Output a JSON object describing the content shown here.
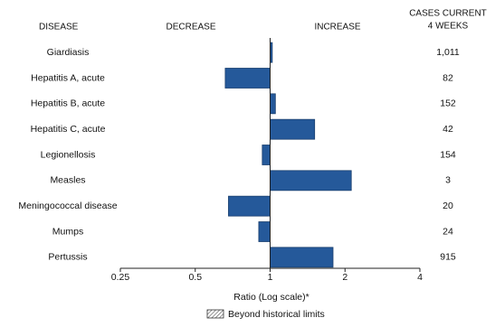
{
  "chart_data": {
    "type": "bar",
    "orientation": "horizontal",
    "log_scale": true,
    "headers": {
      "disease": "DISEASE",
      "decrease": "DECREASE",
      "increase": "INCREASE",
      "cases": [
        "CASES CURRENT",
        "4 WEEKS"
      ]
    },
    "categories": [
      "Giardiasis",
      "Hepatitis A, acute",
      "Hepatitis B, acute",
      "Hepatitis C, acute",
      "Legionellosis",
      "Measles",
      "Meningococcal disease",
      "Mumps",
      "Pertussis"
    ],
    "values": [
      1.02,
      0.66,
      1.05,
      1.51,
      0.93,
      2.12,
      0.68,
      0.9,
      1.79
    ],
    "cases": [
      {
        "value": 1011,
        "label": "1,011"
      },
      82,
      152,
      42,
      154,
      3,
      20,
      24,
      915
    ],
    "color": "#25599a",
    "xlim": [
      0.25,
      4
    ],
    "xticks": [
      0.25,
      0.5,
      1,
      2,
      4
    ],
    "xlabel": "Ratio (Log scale)*",
    "legend": "Beyond historical limits"
  }
}
